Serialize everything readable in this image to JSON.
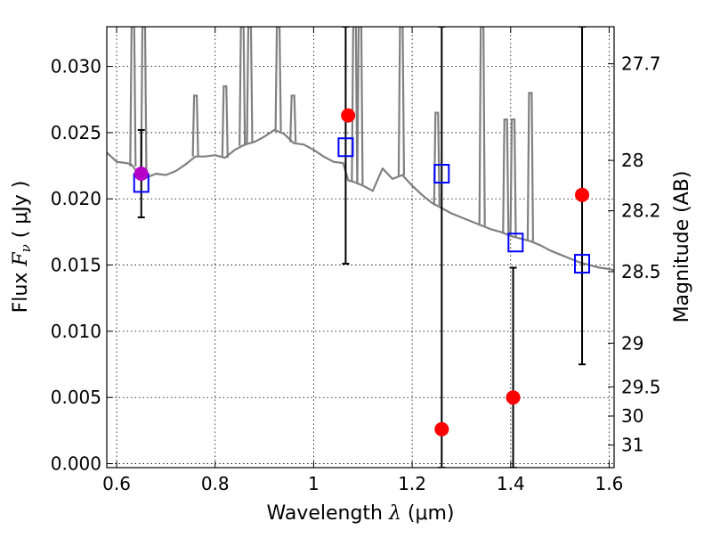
{
  "chart_data": {
    "type": "scatter",
    "title": "",
    "xlabel": "Wavelength  λ (μm)",
    "xlabel_prefix": "Wavelength  ",
    "xlabel_sym": "λ",
    "xlabel_unit": " (μm)",
    "ylabel": "Flux  Fν  ( μJy )",
    "ylabel_prefix": "Flux  ",
    "ylabel_sym": "F",
    "ylabel_sub": "ν",
    "ylabel_unit": "  ( μJy )",
    "y2label": "Magnitude (AB)",
    "xlim": [
      0.58,
      1.61
    ],
    "ylim": [
      -0.0003,
      0.033
    ],
    "xticks": [
      0.6,
      0.8,
      1.0,
      1.2,
      1.4,
      1.6
    ],
    "xtick_labels": [
      "0.6",
      "0.8",
      "1",
      "1.2",
      "1.4",
      "1.6"
    ],
    "yticks": [
      0.0,
      0.005,
      0.01,
      0.015,
      0.02,
      0.025,
      0.03
    ],
    "ytick_labels": [
      "0.000",
      "0.005",
      "0.010",
      "0.015",
      "0.020",
      "0.025",
      "0.030"
    ],
    "mag_ticks": [
      {
        "label": "27.7",
        "flux": 0.0302
      },
      {
        "label": "28",
        "flux": 0.0229
      },
      {
        "label": "28.2",
        "flux": 0.0191
      },
      {
        "label": "28.5",
        "flux": 0.0145
      },
      {
        "label": "29",
        "flux": 0.0091
      },
      {
        "label": "29.5",
        "flux": 0.0058
      },
      {
        "label": "30",
        "flux": 0.0036
      },
      {
        "label": "31",
        "flux": 0.0014
      }
    ],
    "grid": true,
    "series": [
      {
        "kind": "model-spectrum",
        "color": "#808080",
        "x": [
          0.58,
          0.6,
          0.62,
          0.63,
          0.64,
          0.66,
          0.68,
          0.7,
          0.72,
          0.74,
          0.76,
          0.78,
          0.8,
          0.82,
          0.84,
          0.86,
          0.88,
          0.9,
          0.92,
          0.94,
          0.96,
          0.98,
          1.0,
          1.02,
          1.04,
          1.06,
          1.07,
          1.08,
          1.1,
          1.12,
          1.14,
          1.16,
          1.18,
          1.2,
          1.22,
          1.24,
          1.26,
          1.28,
          1.3,
          1.32,
          1.34,
          1.36,
          1.38,
          1.4,
          1.42,
          1.44,
          1.46,
          1.48,
          1.5,
          1.52,
          1.54,
          1.56,
          1.58,
          1.6,
          1.61
        ],
        "y": [
          0.0235,
          0.0228,
          0.0227,
          0.0226,
          0.0221,
          0.0216,
          0.0219,
          0.0218,
          0.0221,
          0.0226,
          0.0232,
          0.0232,
          0.0233,
          0.0231,
          0.0237,
          0.0241,
          0.0243,
          0.0247,
          0.0252,
          0.0249,
          0.0242,
          0.0241,
          0.0237,
          0.0232,
          0.0228,
          0.0227,
          0.0214,
          0.0213,
          0.021,
          0.0206,
          0.0223,
          0.0215,
          0.0218,
          0.021,
          0.0203,
          0.0197,
          0.0193,
          0.0189,
          0.0186,
          0.0183,
          0.018,
          0.0177,
          0.0175,
          0.0172,
          0.017,
          0.0168,
          0.0165,
          0.0161,
          0.0158,
          0.0155,
          0.0152,
          0.015,
          0.0148,
          0.0147,
          0.0146
        ]
      },
      {
        "kind": "emission-lines",
        "x": [
          0.633,
          0.655,
          0.76,
          0.82,
          0.855,
          0.87,
          0.928,
          0.958,
          1.083,
          1.094,
          1.178,
          1.25,
          1.342,
          1.39,
          1.405,
          1.44
        ],
        "y": [
          0.033,
          0.033,
          0.0278,
          0.0285,
          0.033,
          0.033,
          0.033,
          0.0278,
          0.033,
          0.033,
          0.033,
          0.0265,
          0.033,
          0.026,
          0.026,
          0.028
        ]
      },
      {
        "kind": "observed",
        "color": "#ff0000",
        "x": [
          1.07,
          1.26,
          1.405,
          1.545
        ],
        "y": [
          0.0263,
          0.0026,
          0.005,
          0.0203
        ]
      },
      {
        "kind": "observed-blend",
        "color": "#b400c8",
        "x": [
          0.65
        ],
        "y": [
          0.0219
        ]
      },
      {
        "kind": "model-bandpass",
        "color": "#0000ff",
        "x": [
          0.65,
          1.065,
          1.26,
          1.41,
          1.545
        ],
        "y": [
          0.0212,
          0.0239,
          0.0219,
          0.0167,
          0.0151
        ]
      },
      {
        "kind": "errorbars",
        "color": "#000000",
        "x": [
          0.65,
          1.065,
          1.26,
          1.405,
          1.545
        ],
        "low": [
          0.0186,
          0.0151,
          -0.0003,
          -0.0003,
          0.0075
        ],
        "high": [
          0.0252,
          0.033,
          0.033,
          0.0148,
          0.033
        ]
      }
    ]
  }
}
